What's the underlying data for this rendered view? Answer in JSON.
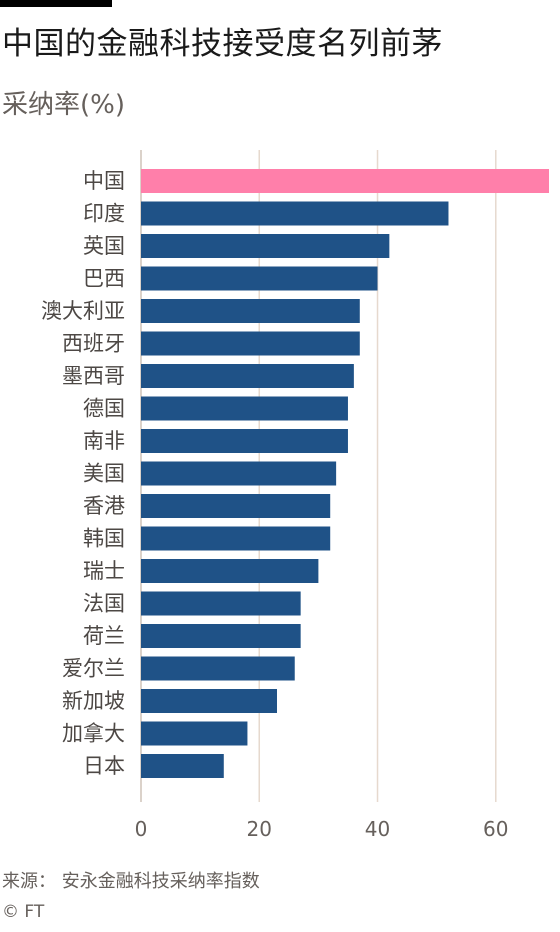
{
  "title": "中国的金融科技接受度名列前茅",
  "subtitle": "采纳率(%)",
  "source": "来源： 安永金融科技采纳率指数",
  "copyright": "© FT",
  "colors": {
    "highlight": "#ff7faa",
    "bar": "#1f5287",
    "grid": "#e6d9ce",
    "axis_text": "#66605c",
    "label_text": "#4d4845"
  },
  "chart_data": {
    "type": "bar",
    "orientation": "horizontal",
    "categories": [
      "中国",
      "印度",
      "英国",
      "巴西",
      "澳大利亚",
      "西班牙",
      "墨西哥",
      "德国",
      "南非",
      "美国",
      "香港",
      "韩国",
      "瑞士",
      "法国",
      "荷兰",
      "爱尔兰",
      "新加坡",
      "加拿大",
      "日本"
    ],
    "values": [
      69,
      52,
      42,
      40,
      37,
      37,
      36,
      35,
      35,
      33,
      32,
      32,
      30,
      27,
      27,
      26,
      23,
      18,
      14
    ],
    "highlight_index": 0,
    "xlim": [
      0,
      69
    ],
    "xticks": [
      0,
      20,
      40,
      60
    ],
    "grid": true,
    "title": "中国的金融科技接受度名列前茅",
    "ylabel": "",
    "xlabel": ""
  }
}
